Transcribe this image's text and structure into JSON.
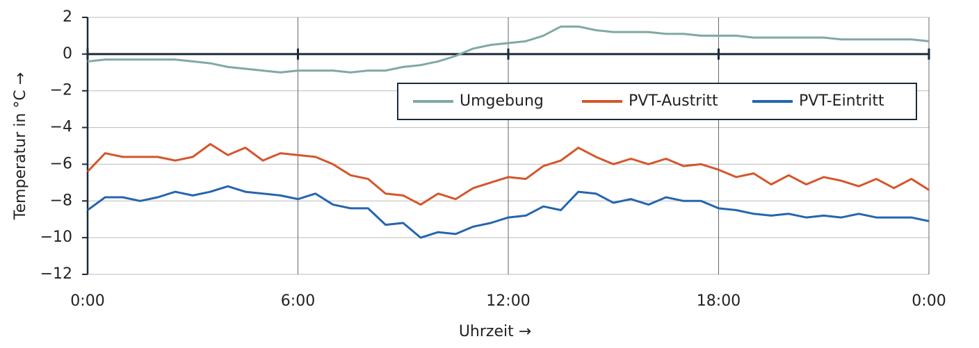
{
  "chart_data": {
    "type": "line",
    "xlabel": "Uhrzeit →",
    "ylabel": "Temperatur in °C →",
    "x": [
      0,
      0.5,
      1,
      1.5,
      2,
      2.5,
      3,
      3.5,
      4,
      4.5,
      5,
      5.5,
      6,
      6.5,
      7,
      7.5,
      8,
      8.5,
      9,
      9.5,
      10,
      10.5,
      11,
      11.5,
      12,
      12.5,
      13,
      13.5,
      14,
      14.5,
      15,
      15.5,
      16,
      16.5,
      17,
      17.5,
      18,
      18.5,
      19,
      19.5,
      20,
      20.5,
      21,
      21.5,
      22,
      22.5,
      23,
      23.5,
      24
    ],
    "series": [
      {
        "name": "Umgebung",
        "color": "#7fa9a4",
        "values": [
          -0.4,
          -0.3,
          -0.3,
          -0.3,
          -0.3,
          -0.3,
          -0.4,
          -0.5,
          -0.7,
          -0.8,
          -0.9,
          -1.0,
          -0.9,
          -0.9,
          -0.9,
          -1.0,
          -0.9,
          -0.9,
          -0.7,
          -0.6,
          -0.4,
          -0.1,
          0.3,
          0.5,
          0.6,
          0.7,
          1.0,
          1.5,
          1.5,
          1.3,
          1.2,
          1.2,
          1.2,
          1.1,
          1.1,
          1.0,
          1.0,
          1.0,
          0.9,
          0.9,
          0.9,
          0.9,
          0.9,
          0.8,
          0.8,
          0.8,
          0.8,
          0.8,
          0.7
        ]
      },
      {
        "name": "PVT-Austritt",
        "color": "#d4562a",
        "values": [
          -6.4,
          -5.4,
          -5.6,
          -5.6,
          -5.6,
          -5.8,
          -5.6,
          -4.9,
          -5.5,
          -5.1,
          -5.8,
          -5.4,
          -5.5,
          -5.6,
          -6.0,
          -6.6,
          -6.8,
          -7.6,
          -7.7,
          -8.2,
          -7.6,
          -7.9,
          -7.3,
          -7.0,
          -6.7,
          -6.8,
          -6.1,
          -5.8,
          -5.1,
          -5.6,
          -6.0,
          -5.7,
          -6.0,
          -5.7,
          -6.1,
          -6.0,
          -6.3,
          -6.7,
          -6.5,
          -7.1,
          -6.6,
          -7.1,
          -6.7,
          -6.9,
          -7.2,
          -6.8,
          -7.3,
          -6.8,
          -7.4
        ]
      },
      {
        "name": "PVT-Eintritt",
        "color": "#2565ae",
        "values": [
          -8.5,
          -7.8,
          -7.8,
          -8.0,
          -7.8,
          -7.5,
          -7.7,
          -7.5,
          -7.2,
          -7.5,
          -7.6,
          -7.7,
          -7.9,
          -7.6,
          -8.2,
          -8.4,
          -8.4,
          -9.3,
          -9.2,
          -10.0,
          -9.7,
          -9.8,
          -9.4,
          -9.2,
          -8.9,
          -8.8,
          -8.3,
          -8.5,
          -7.5,
          -7.6,
          -8.1,
          -7.9,
          -8.2,
          -7.8,
          -8.0,
          -8.0,
          -8.4,
          -8.5,
          -8.7,
          -8.8,
          -8.7,
          -8.9,
          -8.8,
          -8.9,
          -8.7,
          -8.9,
          -8.9,
          -8.9,
          -9.1
        ]
      }
    ],
    "xlim": [
      0,
      24
    ],
    "xticks": [
      {
        "value": 0,
        "label": "0:00"
      },
      {
        "value": 6,
        "label": "6:00"
      },
      {
        "value": 12,
        "label": "12:00"
      },
      {
        "value": 18,
        "label": "18:00"
      },
      {
        "value": 24,
        "label": "0:00"
      }
    ],
    "ylim": [
      -12,
      2
    ],
    "yticks": [
      {
        "value": -12,
        "label": "−12"
      },
      {
        "value": -10,
        "label": "−10"
      },
      {
        "value": -8,
        "label": "−8"
      },
      {
        "value": -6,
        "label": "−6"
      },
      {
        "value": -4,
        "label": "−4"
      },
      {
        "value": -2,
        "label": "−2"
      },
      0,
      2
    ],
    "grid": true,
    "legend": "upper right"
  }
}
